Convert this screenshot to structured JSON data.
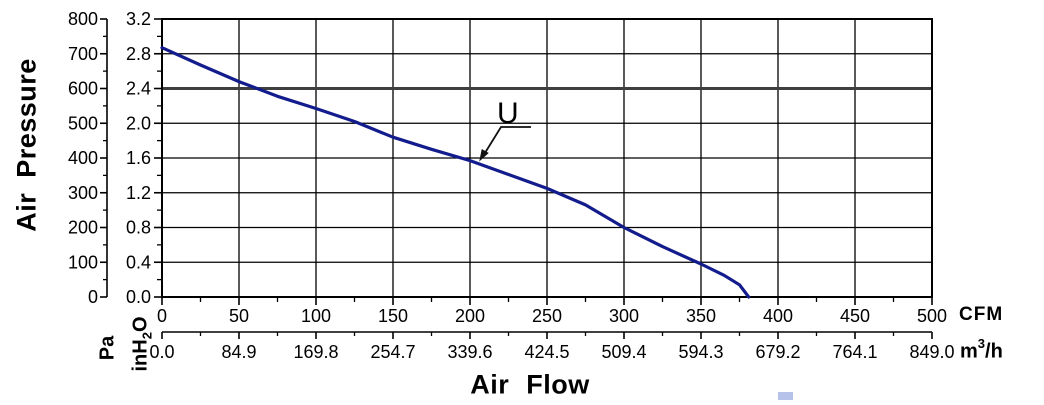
{
  "labels": {
    "y_title": "Air Pressure",
    "x_title": "Air Flow",
    "pa_unit": "Pa",
    "inh2o_pre": "inH",
    "inh2o_sub": "2",
    "inh2o_post": "O",
    "cfm_unit": "CFM",
    "m3h_pre": "m",
    "m3h_sup": "3",
    "m3h_post": "/h",
    "curve_name": "U"
  },
  "chart_data": {
    "type": "line",
    "title": "",
    "x_title": "Air Flow",
    "y_title": "Air Pressure",
    "grid": true,
    "legend": "none",
    "emphasized_gridline_inh2o": 2.4,
    "axes": {
      "y_left_pa": {
        "unit": "Pa",
        "ticks": [
          800,
          700,
          600,
          500,
          400,
          300,
          200,
          100,
          0
        ],
        "range": [
          0,
          800
        ],
        "minor_step": 50
      },
      "y_left_inh2o": {
        "unit": "inH₂O",
        "ticks": [
          "3.2",
          "2.8",
          "2.4",
          "2.0",
          "1.6",
          "1.2",
          "0.8",
          "0.4",
          "0.0"
        ],
        "range": [
          0,
          3.2
        ],
        "minor_step": 0.2
      },
      "x_cfm": {
        "unit": "CFM",
        "ticks": [
          0,
          50,
          100,
          150,
          200,
          250,
          300,
          350,
          400,
          450,
          500
        ],
        "range": [
          0,
          500
        ],
        "minor_step": 25
      },
      "x_m3h": {
        "unit": "m³/h",
        "ticks": [
          "0.0",
          "84.9",
          "169.8",
          "254.7",
          "339.6",
          "424.5",
          "509.4",
          "594.3",
          "679.2",
          "764.1",
          "849.0"
        ],
        "range": [
          0,
          849
        ]
      }
    },
    "series": [
      {
        "name": "U",
        "color": "#131c8c",
        "points_cfm_inh2o": [
          [
            0,
            2.87
          ],
          [
            25,
            2.67
          ],
          [
            50,
            2.48
          ],
          [
            75,
            2.31
          ],
          [
            100,
            2.17
          ],
          [
            125,
            2.02
          ],
          [
            150,
            1.84
          ],
          [
            175,
            1.7
          ],
          [
            200,
            1.57
          ],
          [
            225,
            1.41
          ],
          [
            250,
            1.25
          ],
          [
            275,
            1.06
          ],
          [
            300,
            0.8
          ],
          [
            325,
            0.58
          ],
          [
            350,
            0.38
          ],
          [
            365,
            0.25
          ],
          [
            375,
            0.14
          ],
          [
            381,
            0.0
          ]
        ]
      }
    ],
    "annotation": {
      "text": "U",
      "points_to_cfm": 206,
      "points_to_inh2o": 1.56
    }
  },
  "colors": {
    "grid": "#000000",
    "grid_emphasized": "#3f3f3f",
    "axis": "#000000",
    "artifact": "#b6c2ea"
  }
}
